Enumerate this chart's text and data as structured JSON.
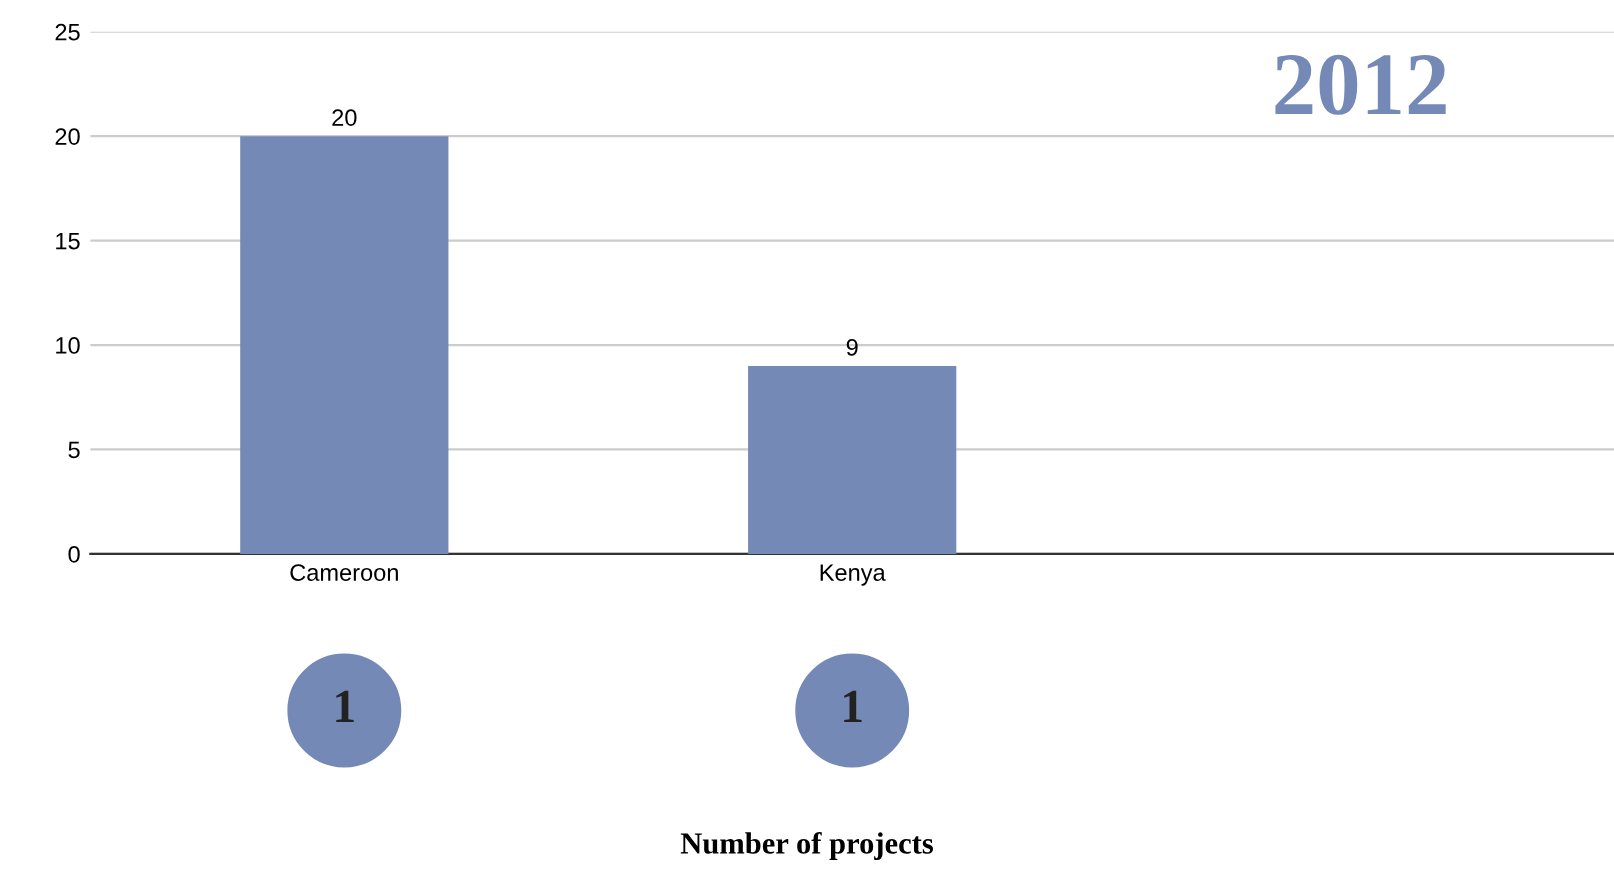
{
  "chart_data": {
    "type": "bar",
    "title": "2012",
    "categories": [
      "Cameroon",
      "Kenya",
      null
    ],
    "values": [
      20,
      9,
      null
    ],
    "color": "#7489b5",
    "ylim": [
      0,
      25
    ],
    "yticks": [
      0,
      5,
      10,
      15,
      20,
      25
    ],
    "grid": "y",
    "data_labels": true,
    "annotations": [
      "1",
      "1",
      "Number of projects"
    ]
  }
}
